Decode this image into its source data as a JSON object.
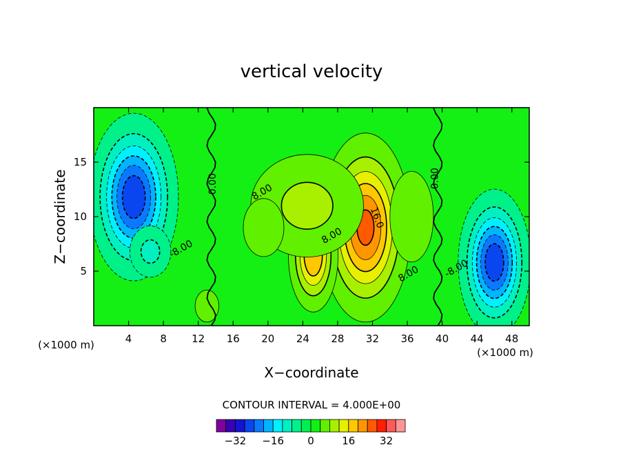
{
  "chart_data": {
    "type": "heatmap",
    "title": "vertical velocity",
    "xlabel": "X−coordinate",
    "ylabel": "Z−coordinate",
    "x_unit_left": "(×1000 m)",
    "x_unit_right": "(×1000 m)",
    "xlim": [
      0,
      50
    ],
    "ylim": [
      0,
      20
    ],
    "x_ticks": [
      4,
      8,
      12,
      16,
      20,
      24,
      28,
      32,
      36,
      40,
      44,
      48
    ],
    "x_tick_labels": [
      "4",
      "8",
      "12",
      "16",
      "20",
      "24",
      "28",
      "32",
      "36",
      "40",
      "44",
      "48"
    ],
    "y_ticks": [
      5,
      10,
      15
    ],
    "y_tick_labels": [
      "5",
      "10",
      "15"
    ],
    "contour_interval_text": "CONTOUR INTERVAL = 4.000E+00",
    "contour_labels": [
      {
        "text": "0.00",
        "x": 14,
        "y": 13
      },
      {
        "text": "0.00",
        "x": 39.5,
        "y": 13.5
      },
      {
        "text": "8.00",
        "x": 19.5,
        "y": 12
      },
      {
        "text": "8.00",
        "x": 27.5,
        "y": 8
      },
      {
        "text": "16.0",
        "x": 32.2,
        "y": 9.8
      },
      {
        "text": "8.00",
        "x": 36.3,
        "y": 4.5
      },
      {
        "text": "-8.00",
        "x": 10.2,
        "y": 6.8
      },
      {
        "text": "-8.00",
        "x": 41.8,
        "y": 5.0
      }
    ],
    "fields": [
      {
        "kind": "down",
        "cx": 4.6,
        "cy": 11.8,
        "rx": 3.2,
        "ry": 4.8,
        "amp": 26
      },
      {
        "kind": "down",
        "cx": 6.5,
        "cy": 6.8,
        "rx": 2.0,
        "ry": 2.0,
        "amp": 8
      },
      {
        "kind": "down",
        "cx": 46.0,
        "cy": 5.8,
        "rx": 2.6,
        "ry": 4.2,
        "amp": 26
      },
      {
        "kind": "up",
        "cx": 31.2,
        "cy": 9.0,
        "rx": 3.3,
        "ry": 5.5,
        "amp": 24
      },
      {
        "kind": "up",
        "cx": 25.2,
        "cy": 6.5,
        "rx": 1.9,
        "ry": 3.5,
        "amp": 19
      },
      {
        "kind": "up",
        "cx": 24.5,
        "cy": 11.0,
        "rx": 5.5,
        "ry": 4.0,
        "amp": 8
      },
      {
        "kind": "up",
        "cx": 19.5,
        "cy": 9.0,
        "rx": 2.8,
        "ry": 3.2,
        "amp": 4
      },
      {
        "kind": "up",
        "cx": 13.0,
        "cy": 1.8,
        "rx": 1.3,
        "ry": 1.4,
        "amp": 6
      },
      {
        "kind": "up",
        "cx": 36.5,
        "cy": 10.0,
        "rx": 3.0,
        "ry": 5.0,
        "amp": 4
      }
    ],
    "colorbar": {
      "colors": [
        "#8000a0",
        "#3a00b4",
        "#1414d2",
        "#0a46f0",
        "#0a78ff",
        "#00b4ff",
        "#00f0ff",
        "#00f0c0",
        "#00f08a",
        "#00f050",
        "#14f014",
        "#60f000",
        "#a8f000",
        "#e6f000",
        "#ffc800",
        "#ff9600",
        "#ff5a00",
        "#ff1e00",
        "#ff5a5a",
        "#ff9696"
      ],
      "tick_labels": [
        "−32",
        "−16",
        "0",
        "16",
        "32"
      ],
      "tick_values": [
        -32,
        -16,
        0,
        16,
        32
      ],
      "min": -40,
      "max": 40
    }
  }
}
